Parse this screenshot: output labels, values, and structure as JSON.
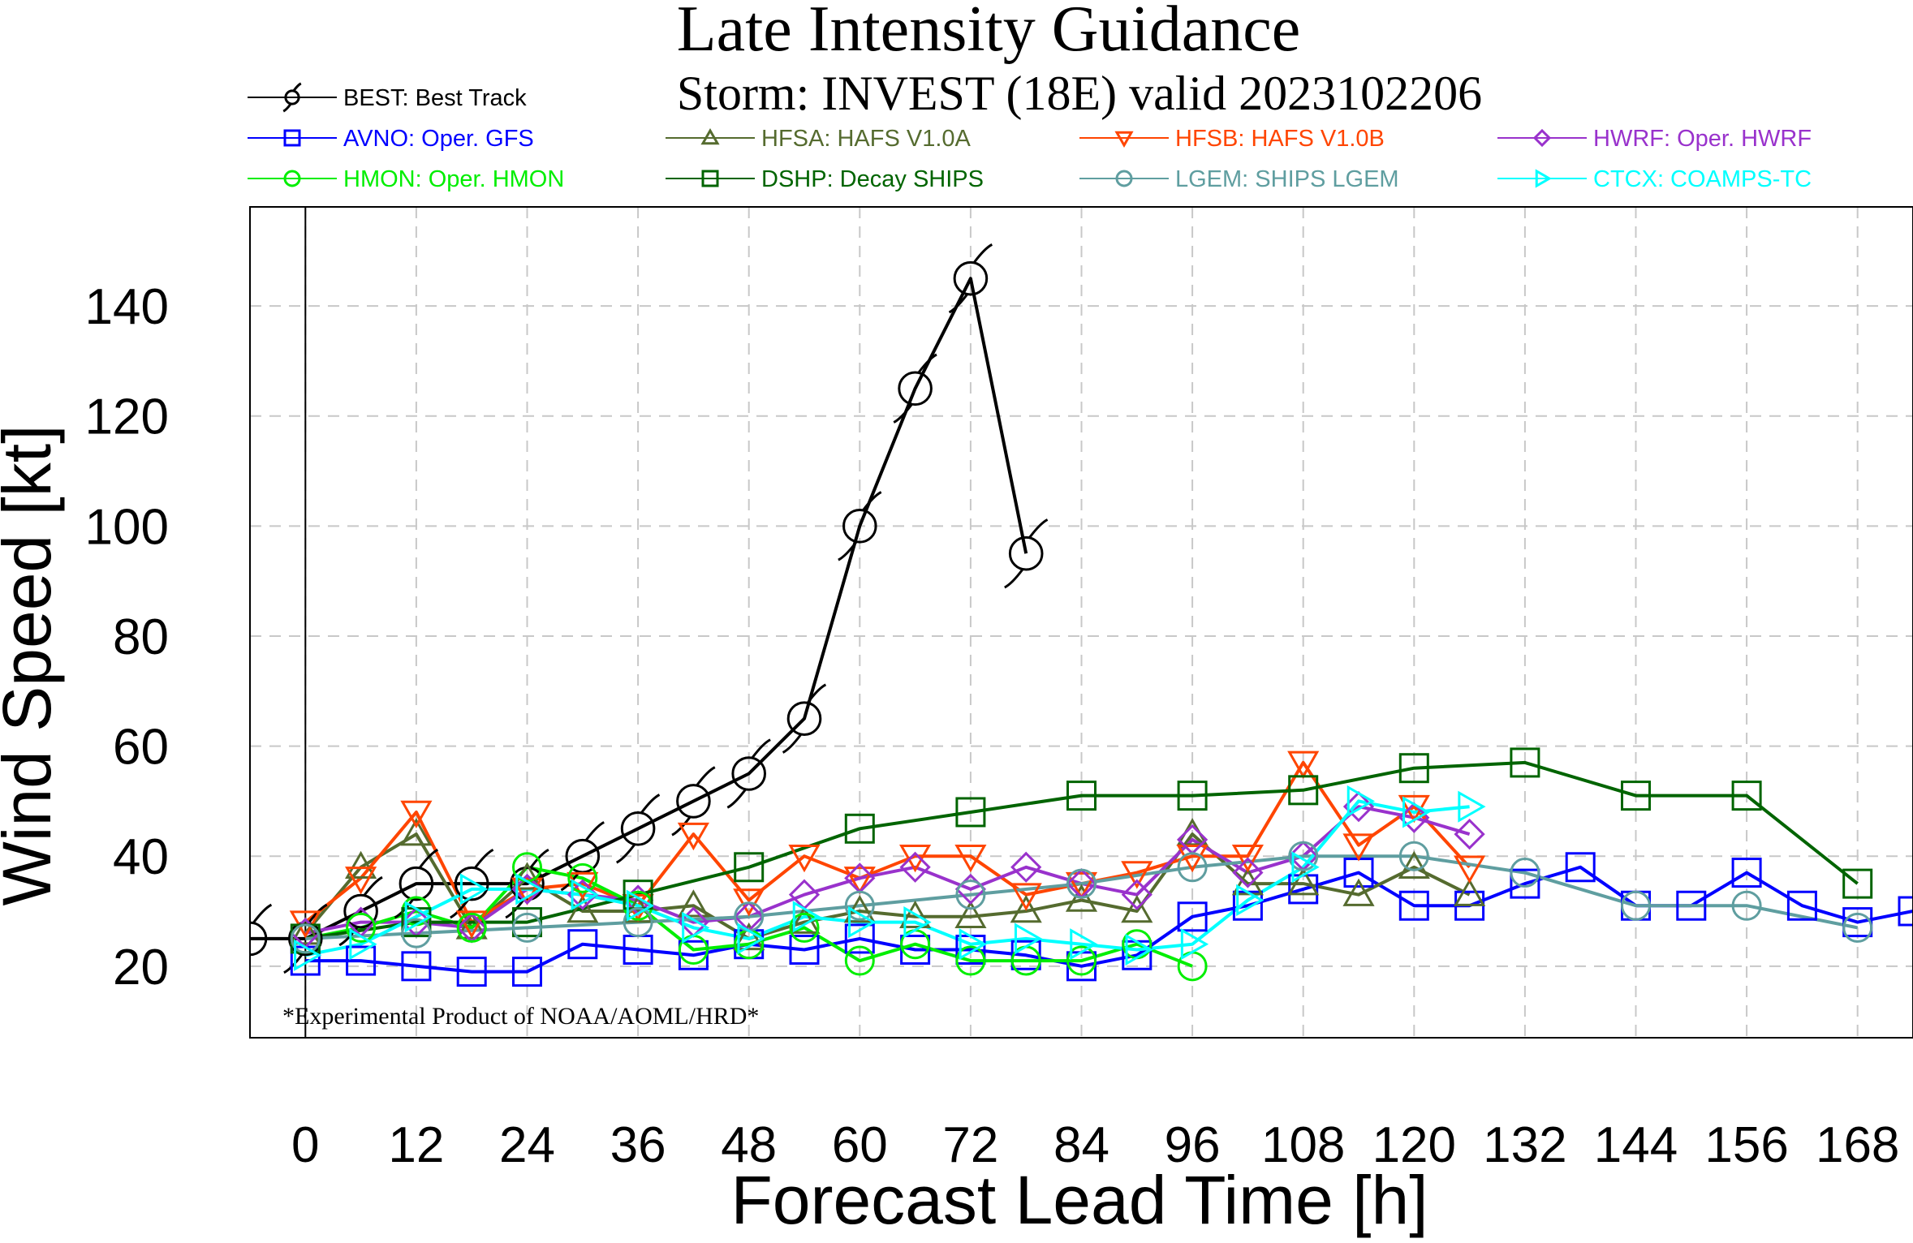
{
  "chart_data": {
    "type": "line",
    "title": "Late Intensity Guidance",
    "subtitle": "Storm: INVEST (18E) valid 2023102206",
    "xlabel": "Forecast Lead Time [h]",
    "ylabel": "Wind Speed [kt]",
    "footnote": "*Experimental Product of NOAA/AOML/HRD*",
    "xlim": [
      -6,
      174
    ],
    "ylim": [
      7,
      158
    ],
    "x_ticks": [
      0,
      12,
      24,
      36,
      48,
      60,
      72,
      84,
      96,
      108,
      120,
      132,
      144,
      156,
      168
    ],
    "x_tick_labels": [
      "0",
      "12",
      "24",
      "36",
      "48",
      "60",
      "72",
      "84",
      "96",
      "108",
      "120",
      "132",
      "144",
      "156",
      "168"
    ],
    "y_ticks": [
      20,
      40,
      60,
      80,
      100,
      120,
      140
    ],
    "y_tick_labels": [
      "20",
      "40",
      "60",
      "80",
      "100",
      "120",
      "140"
    ],
    "grid": true,
    "legend_position": "top",
    "series": [
      {
        "name": "BEST: Best Track",
        "color": "#000000",
        "marker": "hurricane",
        "x": [
          -6,
          0,
          6,
          12,
          18,
          24,
          30,
          36,
          42,
          48,
          54,
          60,
          66,
          72,
          78
        ],
        "y": [
          25,
          25,
          30,
          35,
          35,
          35,
          40,
          45,
          50,
          55,
          65,
          100,
          125,
          145,
          95
        ]
      },
      {
        "name": "AVNO: Oper. GFS",
        "color": "#0000ff",
        "marker": "square",
        "x": [
          0,
          6,
          12,
          18,
          24,
          30,
          36,
          42,
          48,
          54,
          60,
          66,
          72,
          78,
          84,
          90,
          96,
          102,
          108,
          114,
          120,
          126,
          132,
          138,
          144,
          150,
          156,
          162,
          168,
          174
        ],
        "y": [
          21,
          21,
          20,
          19,
          19,
          24,
          23,
          22,
          24,
          23,
          25,
          23,
          23,
          22,
          20,
          22,
          29,
          31,
          34,
          37,
          31,
          31,
          35,
          38,
          31,
          31,
          37,
          31,
          28,
          30
        ]
      },
      {
        "name": "HFSA: HAFS V1.0A",
        "color": "#556b2f",
        "marker": "triangle-up",
        "x": [
          0,
          6,
          12,
          18,
          24,
          30,
          36,
          42,
          48,
          54,
          60,
          66,
          72,
          78,
          84,
          90,
          96,
          102,
          108,
          114,
          120,
          126
        ],
        "y": [
          26,
          38,
          44,
          27,
          36,
          30,
          30,
          31,
          25,
          28,
          30,
          29,
          29,
          30,
          32,
          30,
          44,
          35,
          35,
          33,
          38,
          33
        ]
      },
      {
        "name": "HFSB: HAFS V1.0B",
        "color": "#ff4500",
        "marker": "triangle-down",
        "x": [
          0,
          6,
          12,
          18,
          24,
          30,
          36,
          42,
          48,
          54,
          60,
          66,
          72,
          78,
          84,
          90,
          96,
          102,
          108,
          114,
          120,
          126
        ],
        "y": [
          28,
          36,
          48,
          28,
          34,
          35,
          31,
          44,
          32,
          40,
          36,
          40,
          40,
          33,
          35,
          37,
          40,
          40,
          57,
          42,
          49,
          38
        ]
      },
      {
        "name": "HWRF: Oper. HWRF",
        "color": "#9932cc",
        "marker": "diamond",
        "x": [
          0,
          6,
          12,
          18,
          24,
          30,
          36,
          42,
          48,
          54,
          60,
          66,
          72,
          78,
          84,
          90,
          96,
          102,
          108,
          114,
          120,
          126
        ],
        "y": [
          26,
          28,
          28,
          27,
          34,
          33,
          32,
          28,
          29,
          33,
          36,
          38,
          34,
          38,
          35,
          33,
          43,
          37,
          40,
          49,
          47,
          44
        ]
      },
      {
        "name": "HMON: Oper. HMON",
        "color": "#00ee00",
        "marker": "circle",
        "x": [
          0,
          6,
          12,
          18,
          24,
          30,
          36,
          42,
          48,
          54,
          60,
          66,
          72,
          78,
          84,
          90,
          96
        ],
        "y": [
          25,
          27,
          30,
          27,
          38,
          36,
          31,
          23,
          24,
          27,
          21,
          24,
          21,
          21,
          21,
          24,
          20
        ]
      },
      {
        "name": "DSHP: Decay SHIPS",
        "color": "#006400",
        "marker": "square",
        "x": [
          0,
          12,
          24,
          36,
          48,
          60,
          72,
          84,
          96,
          108,
          120,
          132,
          144,
          156,
          168
        ],
        "y": [
          25,
          28,
          28,
          33,
          38,
          45,
          48,
          51,
          51,
          52,
          56,
          57,
          51,
          51,
          35
        ]
      },
      {
        "name": "LGEM: SHIPS LGEM",
        "color": "#5f9ea0",
        "marker": "circle",
        "x": [
          0,
          12,
          24,
          36,
          48,
          60,
          72,
          84,
          96,
          108,
          120,
          132,
          144,
          156,
          168
        ],
        "y": [
          25,
          26,
          27,
          28,
          29,
          31,
          33,
          35,
          38,
          40,
          40,
          37,
          31,
          31,
          27
        ]
      },
      {
        "name": "CTCX: COAMPS-TC",
        "color": "#00ffff",
        "marker": "triangle-right",
        "x": [
          0,
          6,
          12,
          18,
          24,
          30,
          36,
          42,
          48,
          54,
          60,
          66,
          72,
          78,
          84,
          90,
          96,
          102,
          108,
          114,
          120,
          126
        ],
        "y": [
          22,
          24,
          29,
          34,
          34,
          33,
          31,
          27,
          25,
          29,
          28,
          28,
          24,
          25,
          24,
          23,
          24,
          32,
          38,
          50,
          48,
          49
        ]
      }
    ]
  }
}
